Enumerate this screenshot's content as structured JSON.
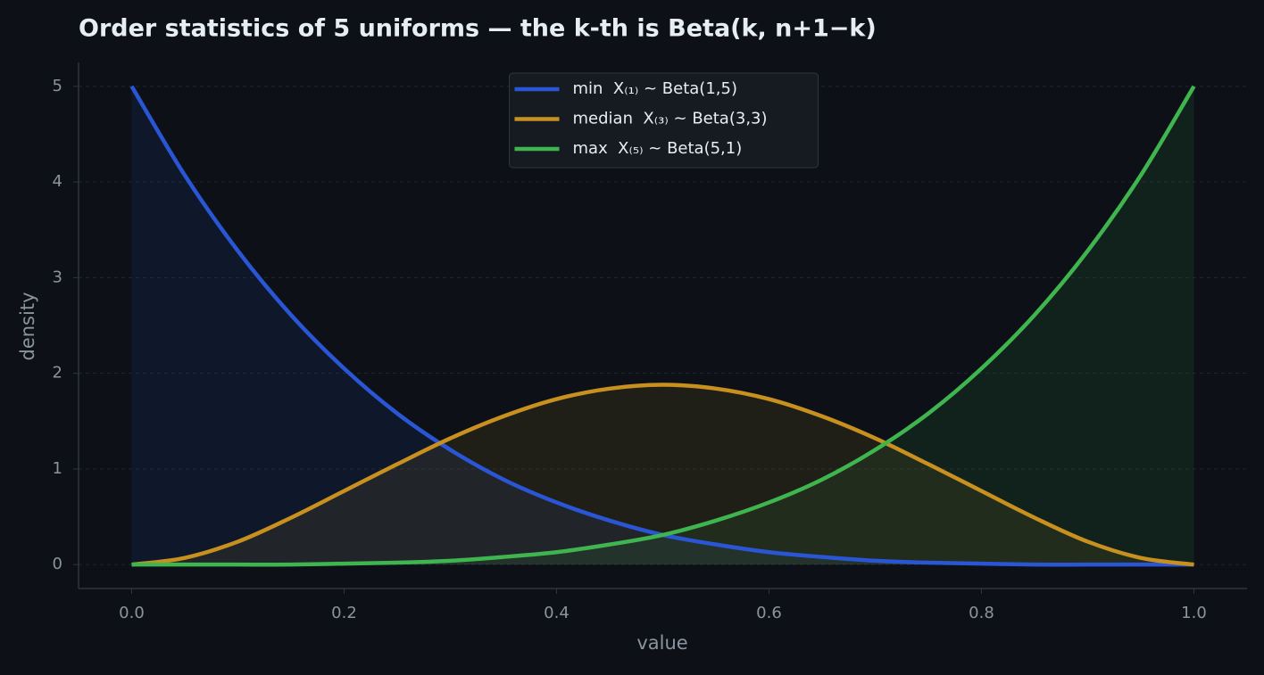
{
  "chart_data": {
    "type": "line",
    "title": "Order statistics of 5 uniforms — the k-th is Beta(k, n+1−k)",
    "x_label": "value",
    "y_label": "density",
    "x": [
      0,
      0.05,
      0.1,
      0.15,
      0.2,
      0.25,
      0.3,
      0.35,
      0.4,
      0.45,
      0.5,
      0.55,
      0.6,
      0.65,
      0.7,
      0.75,
      0.8,
      0.85,
      0.9,
      0.95,
      1.0
    ],
    "series": [
      {
        "name": "min  X₍₁₎ ~ Beta(1,5)",
        "color": "#2a56d6",
        "values": [
          5,
          4.07,
          3.28,
          2.61,
          2.05,
          1.58,
          1.2,
          0.89,
          0.65,
          0.46,
          0.31,
          0.21,
          0.13,
          0.08,
          0.04,
          0.02,
          0.01,
          0,
          0,
          0,
          0
        ]
      },
      {
        "name": "median  X₍₃₎ ~ Beta(3,3)",
        "color": "#c8901e",
        "values": [
          0,
          0.07,
          0.24,
          0.49,
          0.77,
          1.05,
          1.32,
          1.55,
          1.73,
          1.84,
          1.88,
          1.84,
          1.73,
          1.55,
          1.32,
          1.05,
          0.77,
          0.49,
          0.24,
          0.07,
          0
        ]
      },
      {
        "name": "max  X₍₅₎ ~ Beta(5,1)",
        "color": "#3fb54f",
        "values": [
          0,
          0,
          0,
          0,
          0.01,
          0.02,
          0.04,
          0.08,
          0.13,
          0.21,
          0.31,
          0.46,
          0.65,
          0.89,
          1.2,
          1.58,
          2.05,
          2.61,
          3.28,
          4.07,
          5
        ]
      }
    ],
    "xlim": [
      -0.05,
      1.05
    ],
    "ylim": [
      -0.25,
      5.25
    ],
    "xticks": [
      {
        "value": 0,
        "label": "0.0"
      },
      0.2,
      0.4,
      0.6,
      0.8,
      {
        "value": 1,
        "label": "1.0"
      }
    ],
    "yticks": [
      0,
      1,
      2,
      3,
      4,
      5
    ],
    "grid": true,
    "legend": "upper center"
  }
}
